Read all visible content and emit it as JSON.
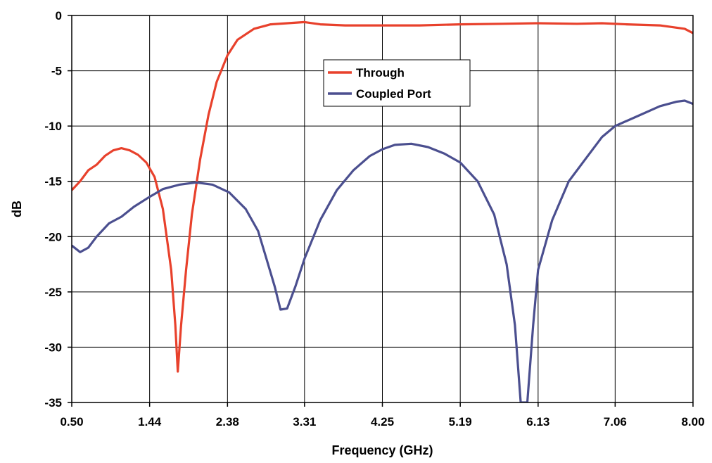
{
  "chart_data": {
    "type": "line",
    "title": "",
    "xlabel": "Frequency (GHz)",
    "ylabel": "dB",
    "xlim": [
      0.5,
      8.0
    ],
    "ylim": [
      -35,
      0
    ],
    "x_ticks": [
      "0.50",
      "1.44",
      "2.38",
      "3.31",
      "4.25",
      "5.19",
      "6.13",
      "7.06",
      "8.00"
    ],
    "y_ticks": [
      "0",
      "-5",
      "-10",
      "-15",
      "-20",
      "-25",
      "-30",
      "-35"
    ],
    "grid": true,
    "legend_position": "top-center",
    "series": [
      {
        "name": "Through",
        "color": "#e8412c",
        "points": [
          [
            0.5,
            -15.8
          ],
          [
            0.6,
            -15.0
          ],
          [
            0.7,
            -14.0
          ],
          [
            0.8,
            -13.5
          ],
          [
            0.9,
            -12.7
          ],
          [
            1.0,
            -12.2
          ],
          [
            1.1,
            -12.0
          ],
          [
            1.2,
            -12.2
          ],
          [
            1.3,
            -12.6
          ],
          [
            1.4,
            -13.3
          ],
          [
            1.5,
            -14.6
          ],
          [
            1.6,
            -17.5
          ],
          [
            1.7,
            -23.0
          ],
          [
            1.75,
            -28.0
          ],
          [
            1.78,
            -32.2
          ],
          [
            1.82,
            -28.0
          ],
          [
            1.88,
            -23.0
          ],
          [
            1.95,
            -18.0
          ],
          [
            2.05,
            -13.0
          ],
          [
            2.15,
            -9.0
          ],
          [
            2.25,
            -6.0
          ],
          [
            2.38,
            -3.6
          ],
          [
            2.5,
            -2.2
          ],
          [
            2.7,
            -1.2
          ],
          [
            2.9,
            -0.8
          ],
          [
            3.31,
            -0.6
          ],
          [
            3.5,
            -0.8
          ],
          [
            3.8,
            -0.9
          ],
          [
            4.25,
            -0.9
          ],
          [
            4.7,
            -0.9
          ],
          [
            5.19,
            -0.8
          ],
          [
            5.7,
            -0.75
          ],
          [
            6.13,
            -0.7
          ],
          [
            6.6,
            -0.75
          ],
          [
            6.9,
            -0.7
          ],
          [
            7.2,
            -0.8
          ],
          [
            7.6,
            -0.9
          ],
          [
            7.9,
            -1.2
          ],
          [
            8.0,
            -1.6
          ]
        ]
      },
      {
        "name": "Coupled Port",
        "color": "#4b4f8f",
        "points": [
          [
            0.5,
            -20.8
          ],
          [
            0.6,
            -21.4
          ],
          [
            0.7,
            -21.0
          ],
          [
            0.8,
            -20.0
          ],
          [
            0.95,
            -18.8
          ],
          [
            1.1,
            -18.2
          ],
          [
            1.25,
            -17.3
          ],
          [
            1.44,
            -16.4
          ],
          [
            1.6,
            -15.7
          ],
          [
            1.8,
            -15.3
          ],
          [
            2.0,
            -15.1
          ],
          [
            2.2,
            -15.3
          ],
          [
            2.4,
            -16.0
          ],
          [
            2.6,
            -17.5
          ],
          [
            2.75,
            -19.5
          ],
          [
            2.85,
            -22.0
          ],
          [
            2.95,
            -24.5
          ],
          [
            3.02,
            -26.6
          ],
          [
            3.1,
            -26.5
          ],
          [
            3.2,
            -24.5
          ],
          [
            3.31,
            -22.0
          ],
          [
            3.5,
            -18.5
          ],
          [
            3.7,
            -15.8
          ],
          [
            3.9,
            -14.0
          ],
          [
            4.1,
            -12.7
          ],
          [
            4.25,
            -12.1
          ],
          [
            4.4,
            -11.7
          ],
          [
            4.6,
            -11.6
          ],
          [
            4.8,
            -11.9
          ],
          [
            5.0,
            -12.5
          ],
          [
            5.19,
            -13.3
          ],
          [
            5.4,
            -15.0
          ],
          [
            5.6,
            -18.0
          ],
          [
            5.75,
            -22.5
          ],
          [
            5.85,
            -28.0
          ],
          [
            5.92,
            -35.0
          ],
          [
            6.0,
            -35.0
          ],
          [
            6.07,
            -28.0
          ],
          [
            6.13,
            -23.0
          ],
          [
            6.3,
            -18.5
          ],
          [
            6.5,
            -15.0
          ],
          [
            6.7,
            -13.0
          ],
          [
            6.9,
            -11.0
          ],
          [
            7.06,
            -10.0
          ],
          [
            7.3,
            -9.2
          ],
          [
            7.6,
            -8.2
          ],
          [
            7.8,
            -7.8
          ],
          [
            7.9,
            -7.7
          ],
          [
            8.0,
            -8.0
          ]
        ]
      }
    ]
  }
}
